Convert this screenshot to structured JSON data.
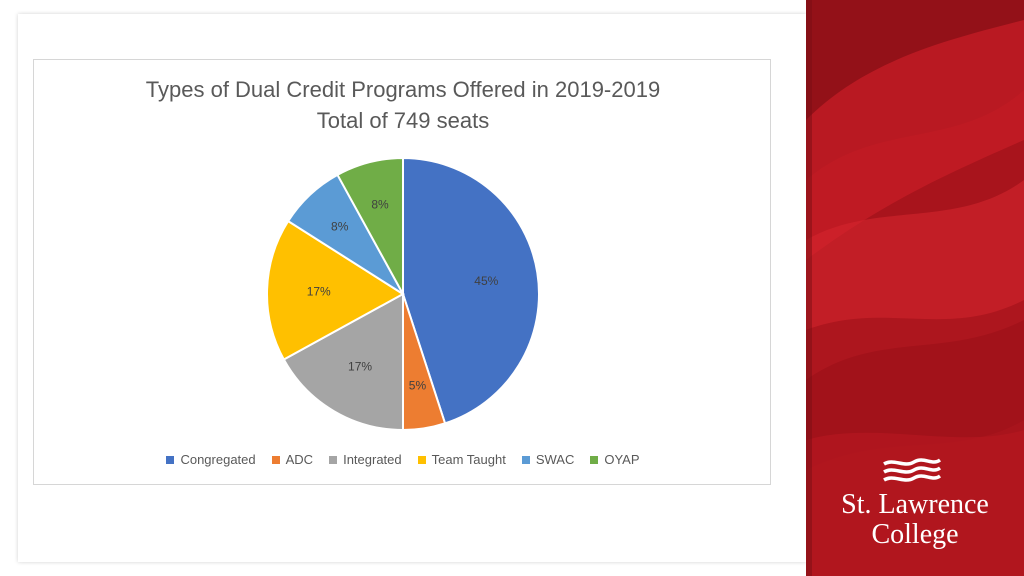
{
  "chart_data": {
    "type": "pie",
    "title": "Types of Dual Credit Programs Offered in 2019-2019",
    "subtitle": "Total of 749 seats",
    "slices": [
      {
        "name": "Congregated",
        "value": 45,
        "label": "45%",
        "color": "#4472C4"
      },
      {
        "name": "ADC",
        "value": 5,
        "label": "5%",
        "color": "#ED7D31"
      },
      {
        "name": "Integrated",
        "value": 17,
        "label": "17%",
        "color": "#A5A5A5"
      },
      {
        "name": "Team Taught",
        "value": 17,
        "label": "17%",
        "color": "#FFC000"
      },
      {
        "name": "SWAC",
        "value": 8,
        "label": "8%",
        "color": "#5B9BD5"
      },
      {
        "name": "OYAP",
        "value": 8,
        "label": "8%",
        "color": "#70AD47"
      }
    ],
    "legend_position": "bottom"
  },
  "branding": {
    "logo_line1": "St. Lawrence",
    "logo_line2": "College",
    "panel_color": "#B2161F"
  }
}
